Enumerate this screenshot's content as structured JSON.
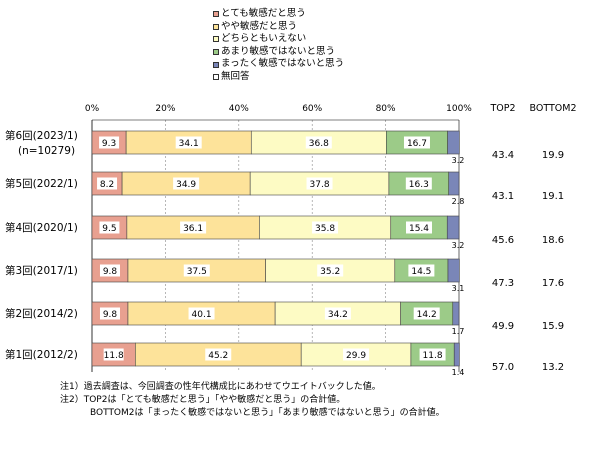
{
  "chart_data": {
    "type": "bar",
    "stacked": true,
    "orientation": "horizontal",
    "categories": [
      "第6回(2023/1)",
      "第5回(2022/1)",
      "第4回(2020/1)",
      "第3回(2017/1)",
      "第2回(2014/2)",
      "第1回(2012/2)"
    ],
    "category_sublabels": [
      "(n=10279)",
      "",
      "",
      "",
      "",
      ""
    ],
    "xlim": [
      0,
      100
    ],
    "xticks": [
      "0%",
      "20%",
      "40%",
      "60%",
      "80%",
      "100%"
    ],
    "legend_position": "top",
    "series": [
      {
        "name": "とても敏感だと思う",
        "color": "#e8a090",
        "values": [
          9.3,
          8.2,
          9.5,
          9.8,
          9.8,
          11.8
        ]
      },
      {
        "name": "やや敏感だと思う",
        "color": "#fde39a",
        "values": [
          34.1,
          34.9,
          36.1,
          37.5,
          40.1,
          45.2
        ]
      },
      {
        "name": "どちらともいえない",
        "color": "#fdfbc4",
        "values": [
          36.8,
          37.8,
          35.8,
          35.2,
          34.2,
          29.9
        ]
      },
      {
        "name": "あまり敏感ではないと思う",
        "color": "#9ccb88",
        "values": [
          16.7,
          16.3,
          15.4,
          14.5,
          14.2,
          11.8
        ]
      },
      {
        "name": "まったく敏感ではないと思う",
        "color": "#7a86b8",
        "values": [
          3.2,
          2.8,
          3.2,
          3.1,
          1.7,
          1.4
        ]
      },
      {
        "name": "無回答",
        "color": "#ffffff",
        "values": [
          0,
          0,
          0,
          0,
          0,
          0
        ]
      }
    ],
    "side_columns": [
      {
        "header": "TOP2",
        "values": [
          "43.4",
          "43.1",
          "45.6",
          "47.3",
          "49.9",
          "57.0"
        ]
      },
      {
        "header": "BOTTOM2",
        "values": [
          "19.9",
          "19.1",
          "18.6",
          "17.6",
          "15.9",
          "13.2"
        ]
      }
    ],
    "label_text": {
      "s0": [
        "9.3",
        "8.2",
        "9.5",
        "9.8",
        "9.8",
        "11.8"
      ],
      "s1": [
        "34.1",
        "34.9",
        "36.1",
        "37.5",
        "40.1",
        "45.2"
      ],
      "s2": [
        "36.8",
        "37.8",
        "35.8",
        "35.2",
        "34.2",
        "29.9"
      ],
      "s3": [
        "16.7",
        "16.3",
        "15.4",
        "14.5",
        "14.2",
        "11.8"
      ],
      "s4": [
        "3.2",
        "2.8",
        "3.2",
        "3.1",
        "1.7",
        "1.4"
      ]
    }
  },
  "notes": [
    "注1）過去調査は、今回調査の性年代構成比にあわせてウエイトバックした値。",
    "注2）TOP2は「とても敏感だと思う」「やや敏感だと思う」の合計値。",
    "BOTTOM2は「まったく敏感ではないと思う」「あまり敏感ではないと思う」の合計値。"
  ]
}
